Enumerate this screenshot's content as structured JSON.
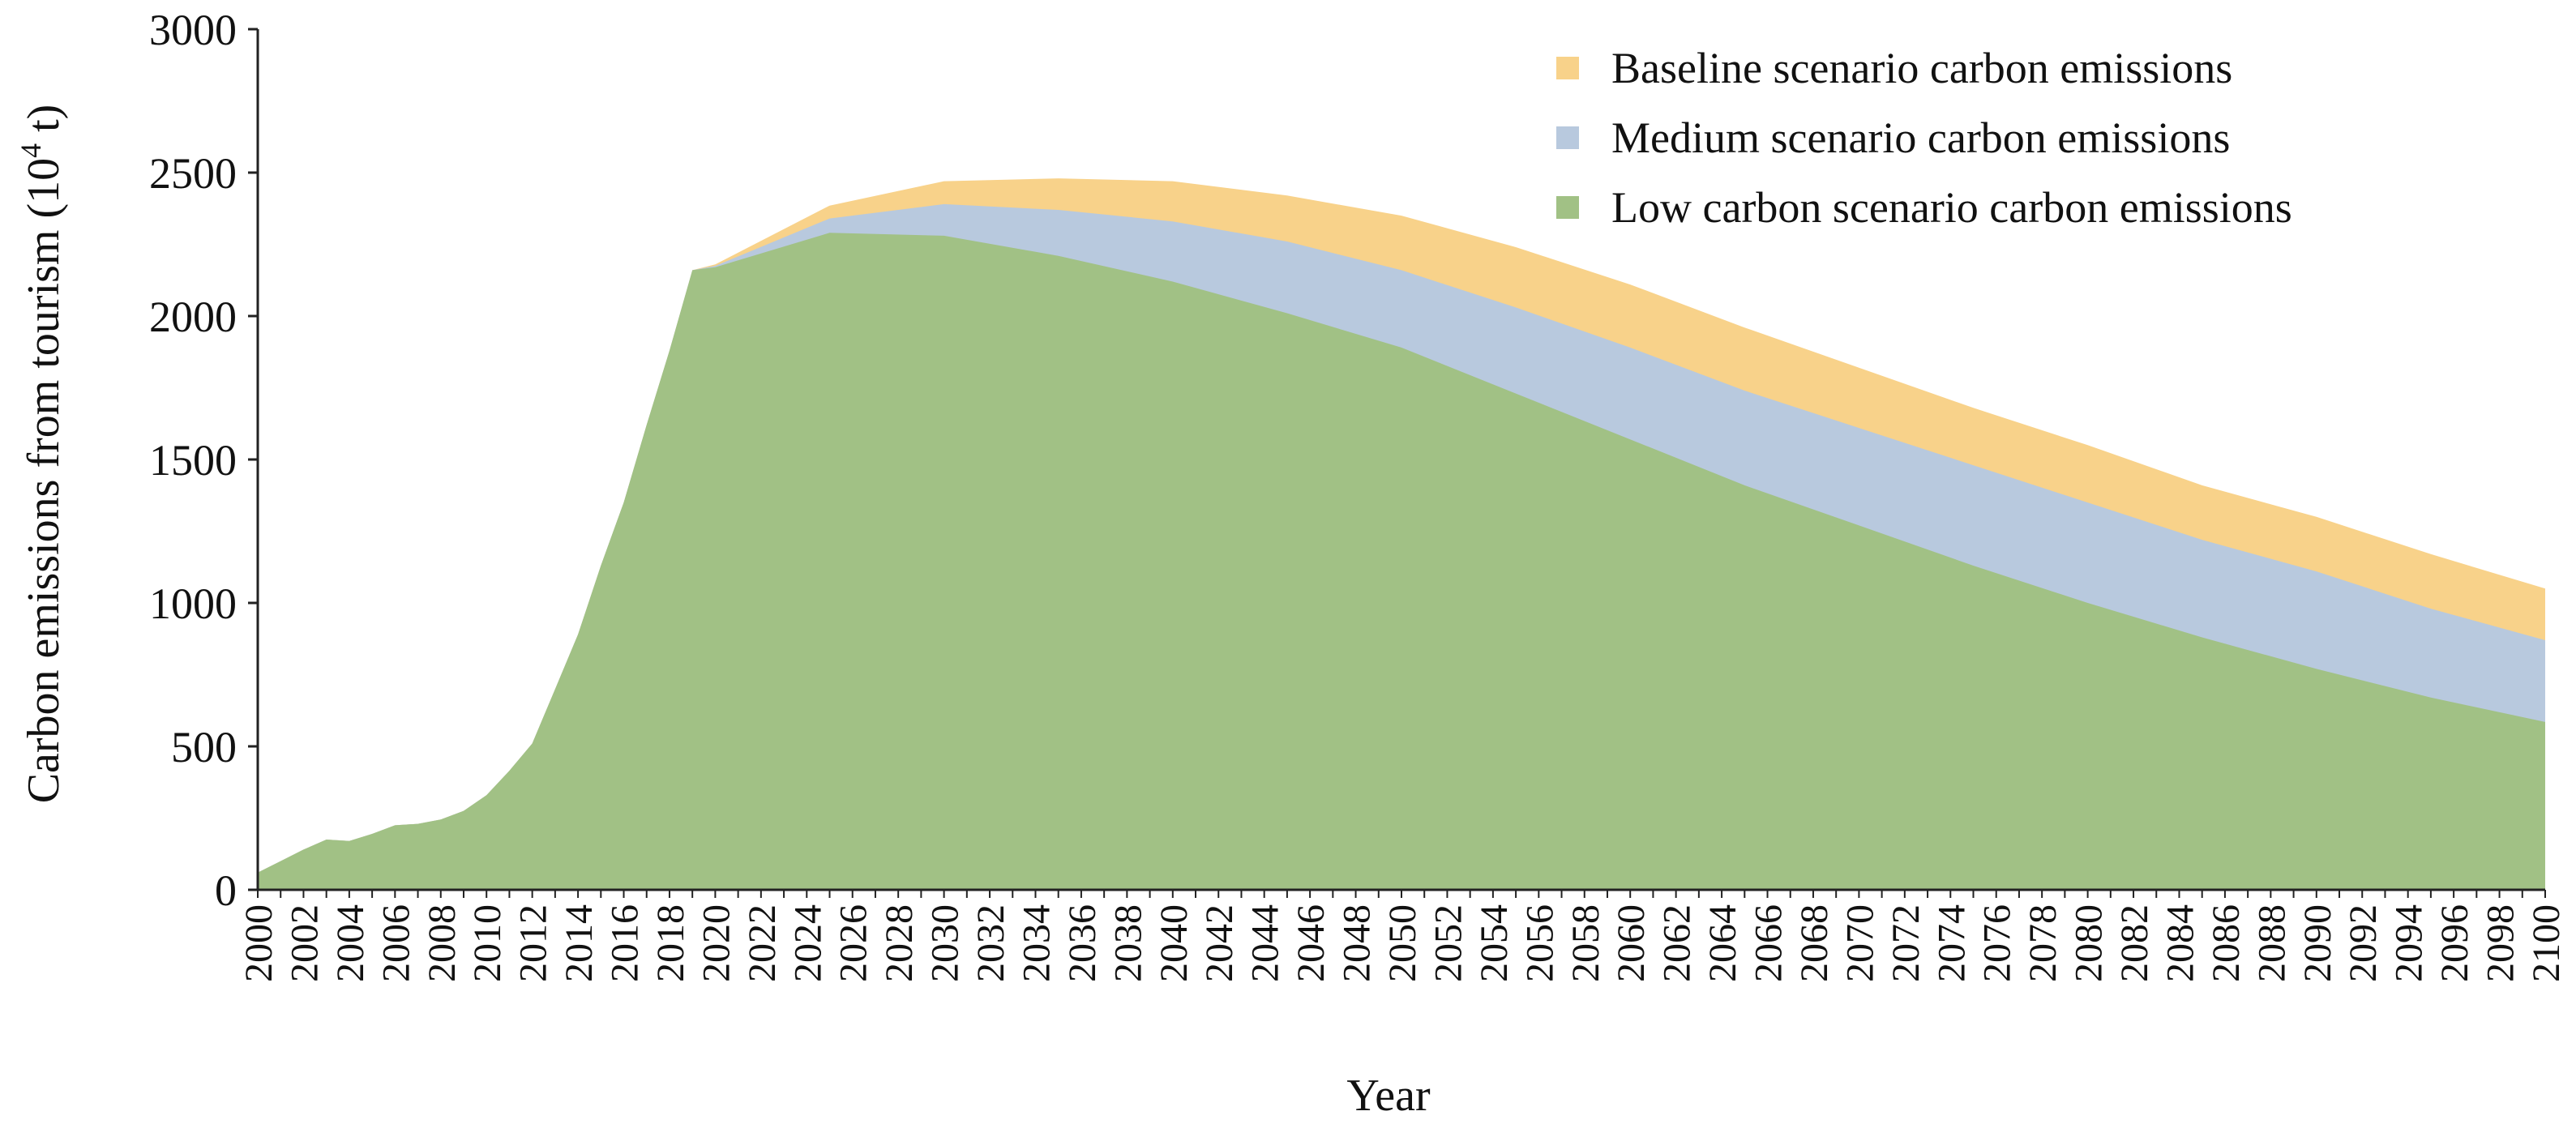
{
  "chart_data": {
    "type": "area",
    "title": "",
    "xlabel": "Year",
    "ylabel_main": "Carbon emissions from tourism (10",
    "ylabel_sup": "4",
    "ylabel_end": " t)",
    "xlim": [
      2000,
      2100
    ],
    "ylim": [
      0,
      3000
    ],
    "y_ticks": [
      "0",
      "500",
      "1000",
      "1500",
      "2000",
      "2500",
      "3000"
    ],
    "x_ticks": [
      "2000",
      "2002",
      "2004",
      "2006",
      "2008",
      "2010",
      "2012",
      "2014",
      "2016",
      "2018",
      "2020",
      "2022",
      "2024",
      "2026",
      "2028",
      "2030",
      "2032",
      "2034",
      "2036",
      "2038",
      "2040",
      "2042",
      "2044",
      "2046",
      "2048",
      "2050",
      "2052",
      "2054",
      "2056",
      "2058",
      "2060",
      "2062",
      "2064",
      "2066",
      "2068",
      "2070",
      "2072",
      "2074",
      "2076",
      "2078",
      "2080",
      "2082",
      "2084",
      "2086",
      "2088",
      "2090",
      "2092",
      "2094",
      "2096",
      "2098",
      "2100"
    ],
    "grid": false,
    "legend_position": "top-right",
    "historical": {
      "x": [
        2000,
        2001,
        2002,
        2003,
        2004,
        2005,
        2006,
        2007,
        2008,
        2009,
        2010,
        2011,
        2012,
        2013,
        2014,
        2015,
        2016,
        2017,
        2018,
        2019
      ],
      "values": [
        60,
        100,
        140,
        175,
        170,
        195,
        225,
        230,
        245,
        275,
        330,
        415,
        510,
        700,
        890,
        1130,
        1350,
        1620,
        1880,
        2160
      ]
    },
    "x": [
      2019,
      2020,
      2025,
      2030,
      2035,
      2040,
      2045,
      2050,
      2055,
      2060,
      2065,
      2070,
      2075,
      2080,
      2085,
      2090,
      2095,
      2100
    ],
    "series": [
      {
        "name": "Baseline scenario carbon emissions",
        "color": "#F8D28A",
        "values": [
          2160,
          2180,
          2385,
          2470,
          2480,
          2470,
          2420,
          2350,
          2240,
          2110,
          1960,
          1820,
          1680,
          1550,
          1410,
          1300,
          1170,
          1050
        ]
      },
      {
        "name": "Medium scenario carbon emissions",
        "color": "#B8C9DE",
        "values": [
          2160,
          2175,
          2340,
          2390,
          2370,
          2330,
          2260,
          2160,
          2030,
          1890,
          1740,
          1610,
          1480,
          1350,
          1220,
          1110,
          980,
          870
        ]
      },
      {
        "name": "Low carbon scenario carbon emissions",
        "color": "#A1C185",
        "values": [
          2160,
          2170,
          2290,
          2280,
          2210,
          2120,
          2010,
          1890,
          1730,
          1570,
          1410,
          1270,
          1130,
          1000,
          880,
          770,
          670,
          585
        ]
      }
    ]
  }
}
